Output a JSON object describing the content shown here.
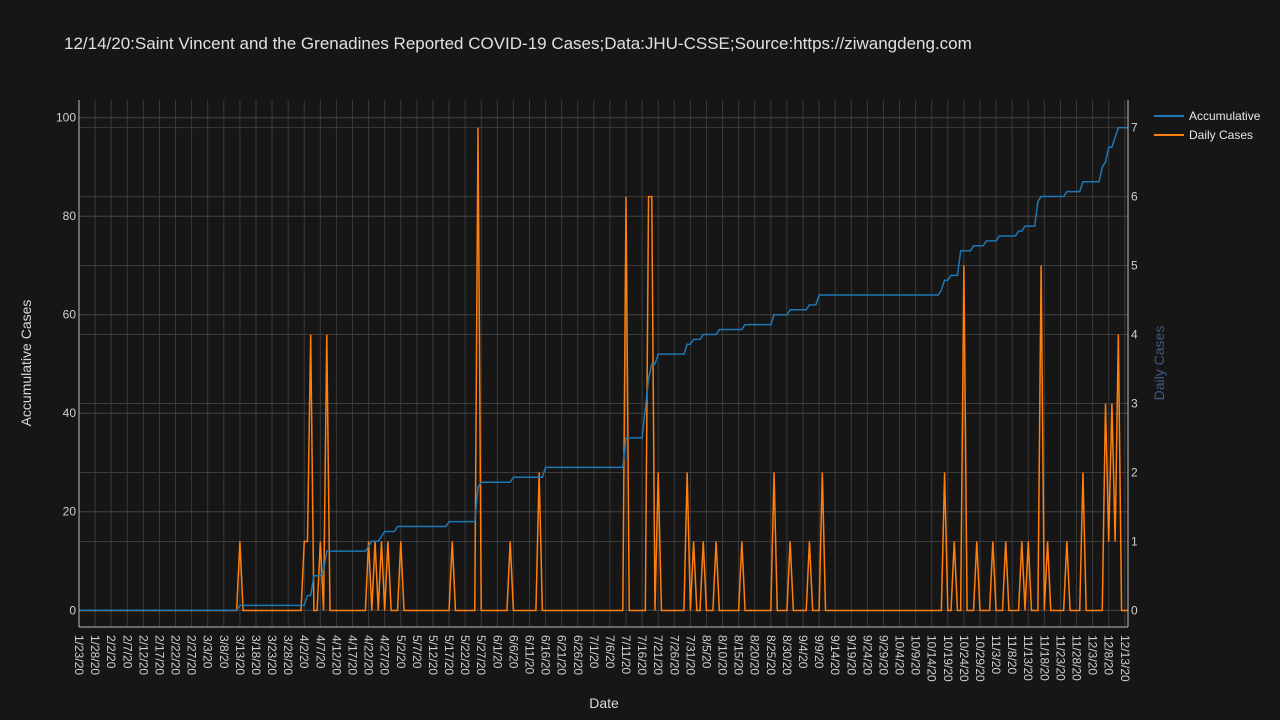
{
  "chart_data": {
    "type": "line",
    "title": "12/14/20:Saint Vincent and the Grenadines Reported COVID-19 Cases;Data:JHU-CSSE;Source:https://ziwangdeng.com",
    "xlabel": "Date",
    "ylabel": "Accumulative Cases",
    "y2label": "Daily Cases",
    "x_start": "2020-01-23",
    "x_end": "2020-12-14",
    "ylim": [
      -3.4,
      103.6
    ],
    "y2lim": [
      -0.24,
      7.4
    ],
    "yticks": [
      0,
      20,
      40,
      60,
      80,
      100
    ],
    "y2ticks": [
      0,
      1,
      2,
      3,
      4,
      5,
      6,
      7
    ],
    "xticks": [
      "1/23/20",
      "1/28/20",
      "2/2/20",
      "2/7/20",
      "2/12/20",
      "2/17/20",
      "2/22/20",
      "2/27/20",
      "3/3/20",
      "3/8/20",
      "3/13/20",
      "3/18/20",
      "3/23/20",
      "3/28/20",
      "4/2/20",
      "4/7/20",
      "4/12/20",
      "4/17/20",
      "4/22/20",
      "4/27/20",
      "5/2/20",
      "5/7/20",
      "5/12/20",
      "5/17/20",
      "5/22/20",
      "5/27/20",
      "6/1/20",
      "6/6/20",
      "6/11/20",
      "6/16/20",
      "6/21/20",
      "6/26/20",
      "7/1/20",
      "7/6/20",
      "7/11/20",
      "7/16/20",
      "7/21/20",
      "7/26/20",
      "7/31/20",
      "8/5/20",
      "8/10/20",
      "8/15/20",
      "8/20/20",
      "8/25/20",
      "8/30/20",
      "9/4/20",
      "9/9/20",
      "9/14/20",
      "9/19/20",
      "9/24/20",
      "9/29/20",
      "10/4/20",
      "10/9/20",
      "10/14/20",
      "10/19/20",
      "10/24/20",
      "10/29/20",
      "11/3/20",
      "11/8/20",
      "11/13/20",
      "11/18/20",
      "11/23/20",
      "11/28/20",
      "12/3/20",
      "12/8/20",
      "12/13/20"
    ],
    "legend": "top-right",
    "grid": true,
    "series": [
      {
        "name": "Accumulative",
        "axis": "left",
        "color": "#1f77b4",
        "step_points": [
          [
            "3/13/20",
            1
          ],
          [
            "4/3/20",
            3
          ],
          [
            "4/5/20",
            7
          ],
          [
            "4/8/20",
            8
          ],
          [
            "4/9/20",
            12
          ],
          [
            "4/22/20",
            13
          ],
          [
            "4/23/20",
            14
          ],
          [
            "4/26/20",
            15
          ],
          [
            "4/27/20",
            16
          ],
          [
            "5/1/20",
            17
          ],
          [
            "5/17/20",
            18
          ],
          [
            "5/26/20",
            25
          ],
          [
            "5/27/20",
            26
          ],
          [
            "6/6/20",
            27
          ],
          [
            "6/16/20",
            29
          ],
          [
            "7/11/20",
            35
          ],
          [
            "7/17/20",
            41
          ],
          [
            "7/18/20",
            47
          ],
          [
            "7/19/20",
            50
          ],
          [
            "7/21/20",
            52
          ],
          [
            "7/30/20",
            54
          ],
          [
            "8/1/20",
            55
          ],
          [
            "8/4/20",
            56
          ],
          [
            "8/9/20",
            57
          ],
          [
            "8/17/20",
            58
          ],
          [
            "8/26/20",
            60
          ],
          [
            "8/31/20",
            61
          ],
          [
            "9/6/20",
            62
          ],
          [
            "9/9/20",
            64
          ],
          [
            "10/17/20",
            65
          ],
          [
            "10/18/20",
            67
          ],
          [
            "10/20/20",
            68
          ],
          [
            "10/23/20",
            73
          ],
          [
            "10/27/20",
            74
          ],
          [
            "10/31/20",
            75
          ],
          [
            "11/4/20",
            76
          ],
          [
            "11/10/20",
            77
          ],
          [
            "11/12/20",
            78
          ],
          [
            "11/16/20",
            83
          ],
          [
            "11/17/20",
            84
          ],
          [
            "11/25/20",
            85
          ],
          [
            "11/30/20",
            87
          ],
          [
            "12/6/20",
            90
          ],
          [
            "12/7/20",
            91
          ],
          [
            "12/8/20",
            94
          ],
          [
            "12/10/20",
            96
          ],
          [
            "12/11/20",
            98
          ]
        ]
      },
      {
        "name": "Daily Cases",
        "axis": "right",
        "color": "#ff7f0e",
        "spikes": [
          [
            "3/13/20",
            1
          ],
          [
            "4/2/20",
            1
          ],
          [
            "4/3/20",
            1
          ],
          [
            "4/4/20",
            4
          ],
          [
            "4/7/20",
            1
          ],
          [
            "4/9/20",
            4
          ],
          [
            "4/22/20",
            1
          ],
          [
            "4/24/20",
            1
          ],
          [
            "4/26/20",
            1
          ],
          [
            "4/28/20",
            1
          ],
          [
            "5/2/20",
            1
          ],
          [
            "5/18/20",
            1
          ],
          [
            "5/26/20",
            7
          ],
          [
            "6/5/20",
            1
          ],
          [
            "6/14/20",
            2
          ],
          [
            "7/11/20",
            6
          ],
          [
            "7/18/20",
            6
          ],
          [
            "7/19/20",
            6
          ],
          [
            "7/21/20",
            2
          ],
          [
            "7/30/20",
            2
          ],
          [
            "8/1/20",
            1
          ],
          [
            "8/4/20",
            1
          ],
          [
            "8/8/20",
            1
          ],
          [
            "8/16/20",
            1
          ],
          [
            "8/26/20",
            2
          ],
          [
            "8/31/20",
            1
          ],
          [
            "9/6/20",
            1
          ],
          [
            "9/10/20",
            2
          ],
          [
            "10/18/20",
            2
          ],
          [
            "10/21/20",
            1
          ],
          [
            "10/24/20",
            5
          ],
          [
            "10/28/20",
            1
          ],
          [
            "11/2/20",
            1
          ],
          [
            "11/6/20",
            1
          ],
          [
            "11/11/20",
            1
          ],
          [
            "11/13/20",
            1
          ],
          [
            "11/17/20",
            5
          ],
          [
            "11/19/20",
            1
          ],
          [
            "11/25/20",
            1
          ],
          [
            "11/30/20",
            2
          ],
          [
            "12/7/20",
            3
          ],
          [
            "12/8/20",
            1
          ],
          [
            "12/9/20",
            3
          ],
          [
            "12/10/20",
            1
          ],
          [
            "12/11/20",
            4
          ]
        ]
      }
    ]
  }
}
